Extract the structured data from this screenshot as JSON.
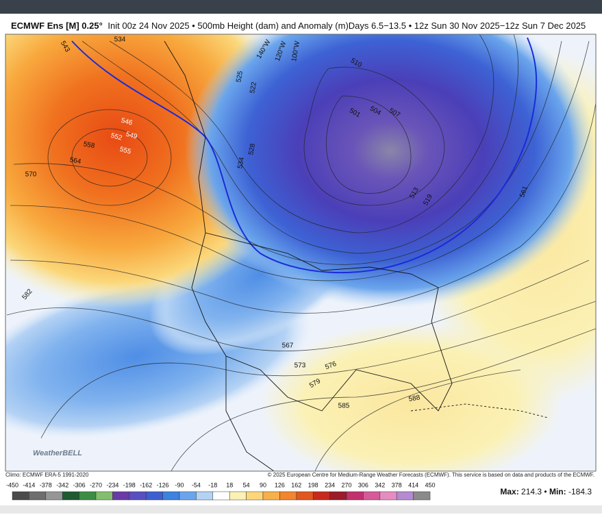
{
  "header": {
    "model": "ECMWF Ens [M] 0.25°",
    "description": "Init 00z 24 Nov 2025 • 500mb Height (dam) and Anomaly (m)Days 6.5−13.5 • 12z Sun 30 Nov 2025−12z Sun 7 Dec 2025"
  },
  "map": {
    "longitude_labels": [
      "140°W",
      "120°W",
      "100°W"
    ],
    "contour_labels": [
      "543",
      "534",
      "570",
      "564",
      "558",
      "552",
      "546",
      "549",
      "555",
      "582",
      "525",
      "522",
      "528",
      "534",
      "510",
      "501",
      "504",
      "507",
      "513",
      "519",
      "561",
      "567",
      "573",
      "576",
      "579",
      "585",
      "588"
    ],
    "logo": "WeatherBELL"
  },
  "footer": {
    "climo": "Climo: ECMWF ERA-5 1991-2020",
    "copyright": "© 2025 European Centre for Medium-Range Weather Forecasts (ECMWF). This service is based on data and products of the ECMWF."
  },
  "colorbar": {
    "labels": [
      -450,
      -414,
      -378,
      -342,
      -306,
      -270,
      -234,
      -198,
      -162,
      -126,
      -90,
      -54,
      -18,
      18,
      54,
      90,
      126,
      162,
      198,
      234,
      270,
      306,
      342,
      378,
      414,
      450
    ],
    "colors": [
      "#4b4b4b",
      "#6e6e6e",
      "#969696",
      "#1e5a32",
      "#3c8c46",
      "#82be6e",
      "#6a3aa6",
      "#5a4fc0",
      "#3d5fd0",
      "#3c82e0",
      "#6aa5ec",
      "#b4d2f4",
      "#ffffff",
      "#fbf1b4",
      "#fbd77a",
      "#f8b04a",
      "#f2852e",
      "#e2561f",
      "#c62a1a",
      "#9c1a2a",
      "#c2306e",
      "#d65a9a",
      "#e58cc0",
      "#b48ad0",
      "#8a8a8a"
    ]
  },
  "stats": {
    "max_label": "Max:",
    "max": "214.3",
    "separator": "•",
    "min_label": "Min:",
    "min": "-184.3"
  }
}
